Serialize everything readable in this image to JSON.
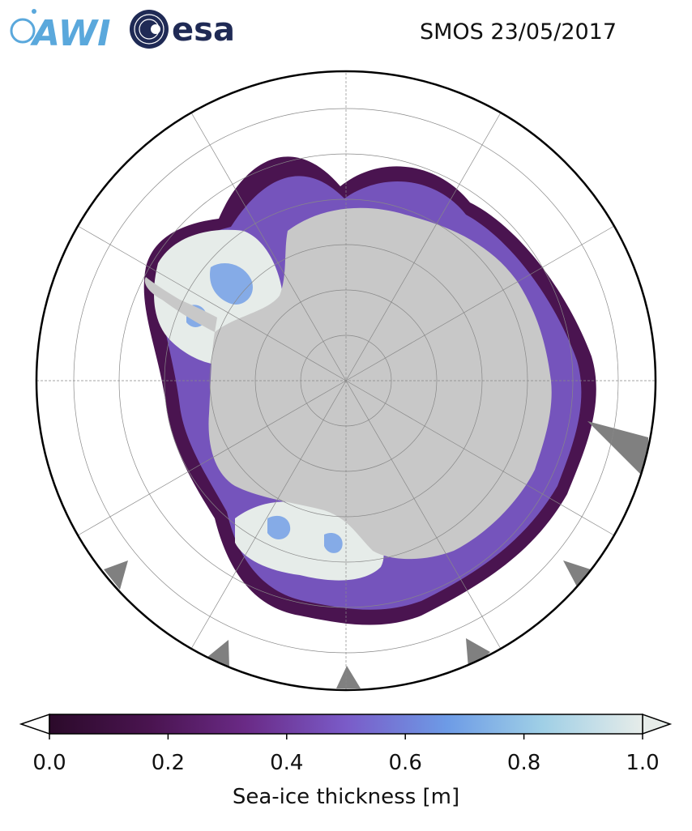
{
  "header": {
    "title": "SMOS 23/05/2017",
    "logo_awi_text": "AWI",
    "logo_esa_text": "esa"
  },
  "map": {
    "projection": "south-polar-stereographic",
    "variable": "Sea-ice thickness",
    "colors": {
      "land": "#c8c8c8",
      "missing": "#808080",
      "ocean": "#ffffff",
      "grid": "#888888"
    }
  },
  "colorbar": {
    "label": "Sea-ice thickness [m]",
    "ticks": [
      "0.0",
      "0.2",
      "0.4",
      "0.6",
      "0.8",
      "1.0"
    ],
    "range": [
      0.0,
      1.0
    ],
    "extend": "both",
    "colormap": [
      "#2b0a2a",
      "#4a1450",
      "#6a2a86",
      "#7a5bc8",
      "#6d9be6",
      "#9fcfe6",
      "#e6ece9"
    ]
  }
}
